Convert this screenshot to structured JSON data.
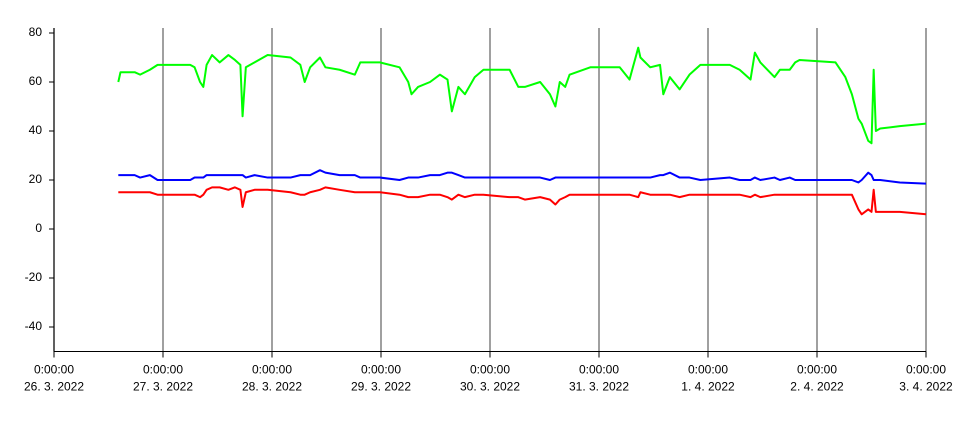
{
  "chart_data": {
    "type": "line",
    "x": [
      0.59,
      0.61,
      0.74,
      0.79,
      0.88,
      0.95,
      1.25,
      1.29,
      1.34,
      1.37,
      1.4,
      1.45,
      1.52,
      1.6,
      1.66,
      1.71,
      1.73,
      1.76,
      1.84,
      1.96,
      2.17,
      2.26,
      2.3,
      2.35,
      2.44,
      2.49,
      2.62,
      2.76,
      2.81,
      2.99,
      3.17,
      3.25,
      3.28,
      3.34,
      3.45,
      3.54,
      3.61,
      3.65,
      3.71,
      3.77,
      3.86,
      3.94,
      4.18,
      4.26,
      4.32,
      4.46,
      4.55,
      4.6,
      4.64,
      4.69,
      4.73,
      4.92,
      5.19,
      5.28,
      5.36,
      5.38,
      5.47,
      5.56,
      5.59,
      5.65,
      5.74,
      5.83,
      5.93,
      6.2,
      6.29,
      6.39,
      6.43,
      6.48,
      6.61,
      6.66,
      6.75,
      6.8,
      6.84,
      7.17,
      7.26,
      7.32,
      7.38,
      7.41,
      7.47,
      7.5,
      7.52,
      7.54,
      7.58,
      7.76,
      8
    ],
    "series": [
      {
        "color": "#00ff00",
        "values": [
          60,
          64,
          64,
          63,
          65,
          67,
          67,
          66,
          60,
          58,
          67,
          71,
          68,
          71,
          69,
          67,
          46,
          66,
          68,
          71,
          70,
          67,
          60,
          66,
          70,
          66,
          65,
          63,
          68,
          68,
          66,
          60,
          55,
          58,
          60,
          63,
          61,
          48,
          58,
          55,
          62,
          65,
          65,
          58,
          58,
          60,
          55,
          50,
          60,
          58,
          63,
          66,
          66,
          61,
          74,
          70,
          66,
          67,
          55,
          62,
          57,
          63,
          67,
          67,
          65,
          61,
          72,
          68,
          62,
          65,
          65,
          68,
          69,
          68,
          62,
          55,
          45,
          43,
          36,
          35,
          65,
          40,
          41,
          42,
          43
        ]
      },
      {
        "color": "#0000ff",
        "values": [
          22,
          22,
          22,
          21,
          22,
          20,
          20,
          21,
          21,
          21,
          22,
          22,
          22,
          22,
          22,
          22,
          22,
          21,
          22,
          21,
          21,
          22,
          22,
          22,
          24,
          23,
          22,
          22,
          21,
          21,
          20,
          21,
          21,
          21,
          22,
          22,
          23,
          23,
          22,
          21,
          21,
          21,
          21,
          21,
          21,
          21,
          20,
          21,
          21,
          21,
          21,
          21,
          21,
          21,
          21,
          21,
          21,
          22,
          22,
          23,
          21,
          21,
          20,
          21,
          20,
          20,
          21,
          20,
          21,
          20,
          21,
          20,
          20,
          20,
          20,
          20,
          19,
          20,
          23,
          22,
          20,
          20,
          20,
          19,
          18.5
        ]
      },
      {
        "color": "#ff0000",
        "values": [
          15,
          15,
          15,
          15,
          15,
          14,
          14,
          14,
          13,
          14,
          16,
          17,
          17,
          16,
          17,
          16,
          9,
          15,
          16,
          16,
          15,
          14,
          14,
          15,
          16,
          17,
          16,
          15,
          15,
          15,
          14,
          13,
          13,
          13,
          14,
          14,
          13,
          12,
          14,
          13,
          14,
          14,
          13,
          13,
          12,
          13,
          12,
          10,
          12,
          13,
          14,
          14,
          14,
          14,
          13,
          15,
          14,
          14,
          14,
          14,
          13,
          14,
          14,
          14,
          14,
          13,
          14,
          13,
          14,
          14,
          14,
          14,
          14,
          14,
          14,
          14,
          8,
          6,
          8,
          7,
          16,
          7,
          7,
          7,
          6
        ]
      }
    ],
    "xlim": [
      0,
      8
    ],
    "xticks": [
      {
        "value": 0,
        "label": [
          "0:00:00",
          "26. 3. 2022"
        ]
      },
      {
        "value": 1,
        "label": [
          "0:00:00",
          "27. 3. 2022"
        ]
      },
      {
        "value": 2,
        "label": [
          "0:00:00",
          "28. 3. 2022"
        ]
      },
      {
        "value": 3,
        "label": [
          "0:00:00",
          "29. 3. 2022"
        ]
      },
      {
        "value": 4,
        "label": [
          "0:00:00",
          "30. 3. 2022"
        ]
      },
      {
        "value": 5,
        "label": [
          "0:00:00",
          "31. 3. 2022"
        ]
      },
      {
        "value": 6,
        "label": [
          "0:00:00",
          "1. 4. 2022"
        ]
      },
      {
        "value": 7,
        "label": [
          "0:00:00",
          "2. 4. 2022"
        ]
      },
      {
        "value": 8,
        "label": [
          "0:00:00",
          "3. 4. 2022"
        ]
      }
    ],
    "ylim": [
      -50,
      80
    ],
    "yticks": [
      -40,
      -20,
      0,
      20,
      40,
      60,
      80
    ],
    "grid": "x"
  }
}
